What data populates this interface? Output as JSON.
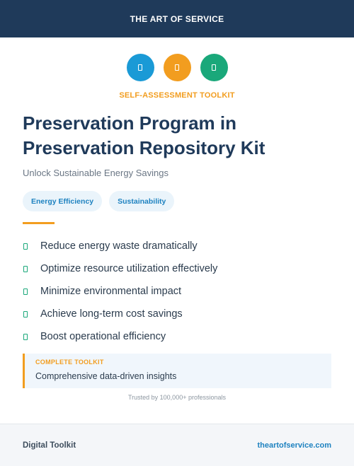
{
  "header": {
    "title": "THE ART OF SERVICE"
  },
  "icons": [
    {
      "name": "document-icon",
      "color": "#1a9ad6"
    },
    {
      "name": "document-icon",
      "color": "#f29d1f"
    },
    {
      "name": "document-icon",
      "color": "#1aa87a"
    }
  ],
  "kicker": {
    "text": "SELF-ASSESSMENT TOOLKIT",
    "color": "#f29d1f"
  },
  "title": "Preservation Program in Preservation Repository Kit",
  "subtitle": "Unlock Sustainable Energy Savings",
  "tags": [
    "Energy Efficiency",
    "Sustainability"
  ],
  "accent_color": "#f29d1f",
  "benefits": [
    "Reduce energy waste dramatically",
    "Optimize resource utilization effectively",
    "Minimize environmental impact",
    "Achieve long-term cost savings",
    "Boost operational efficiency"
  ],
  "callout": {
    "label": "COMPLETE TOOLKIT",
    "text": "Comprehensive data-driven insights",
    "label_color": "#f29d1f"
  },
  "trust": "Trusted by 100,000+ professionals",
  "footer": {
    "left": "Digital Toolkit",
    "right": "theartofservice.com"
  }
}
